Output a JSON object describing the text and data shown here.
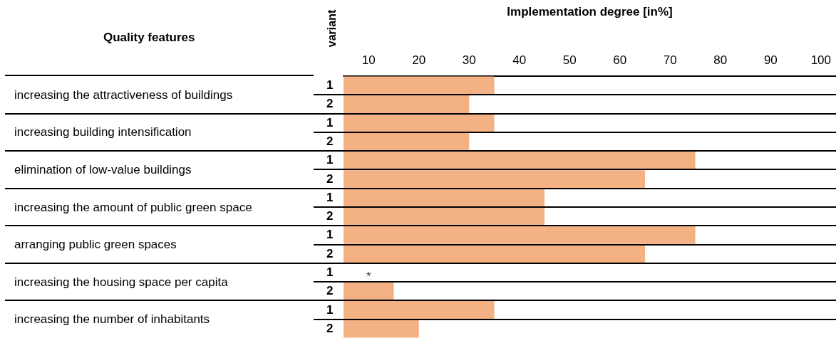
{
  "chart_data": {
    "type": "bar",
    "orientation": "horizontal",
    "xlabel": "Implementation degree [in%]",
    "ylabel": "Quality features",
    "legend_title": "variant",
    "categories": [
      "increasing the attractiveness of buildings",
      "increasing building intensification",
      "elimination of low-value buildings",
      "increasing the amount of public green space",
      "arranging public green spaces",
      "increasing the housing space per capita",
      "increasing the number of inhabitants"
    ],
    "series": [
      {
        "name": "1",
        "color": "#f4b183",
        "values": [
          35,
          35,
          75,
          45,
          75,
          null,
          35
        ]
      },
      {
        "name": "2",
        "color": "#f4b183",
        "values": [
          30,
          30,
          65,
          45,
          65,
          15,
          20
        ]
      }
    ],
    "xlim": [
      5,
      103
    ],
    "xticks": [
      10,
      20,
      30,
      40,
      50,
      60,
      70,
      80,
      90,
      100
    ],
    "annotations": [
      {
        "text": "*",
        "x": 10,
        "y": "increasing the housing space per capita"
      }
    ],
    "grid": false,
    "legend": false
  }
}
